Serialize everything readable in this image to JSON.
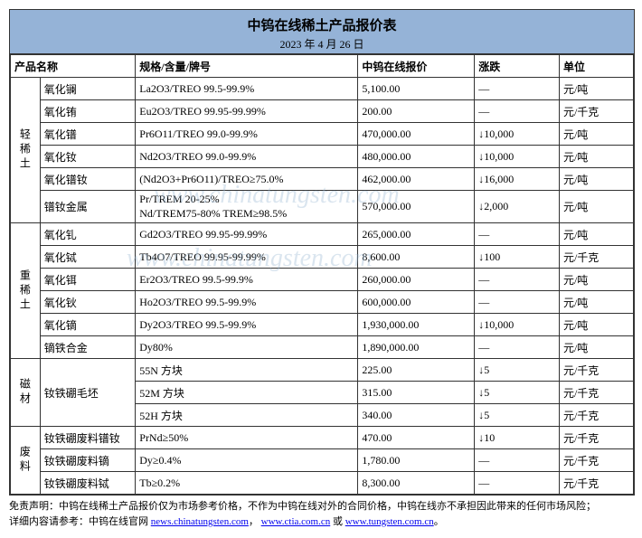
{
  "header": {
    "title": "中钨在线稀土产品报价表",
    "date": "2023 年 4 月 26 日"
  },
  "columns": {
    "name": "产品名称",
    "spec": "规格/含量/牌号",
    "price": "中钨在线报价",
    "change": "涨跌",
    "unit": "单位"
  },
  "groups": [
    {
      "label": "轻稀土",
      "rows": [
        {
          "name": "氧化镧",
          "spec": "La2O3/TREO 99.5-99.9%",
          "price": "5,100.00",
          "change": "—",
          "unit": "元/吨"
        },
        {
          "name": "氧化铕",
          "spec": "Eu2O3/TREO 99.95-99.99%",
          "price": "200.00",
          "change": "—",
          "unit": "元/千克"
        },
        {
          "name": "氧化镨",
          "spec": "Pr6O11/TREO 99.0-99.9%",
          "price": "470,000.00",
          "change": "↓10,000",
          "unit": "元/吨"
        },
        {
          "name": "氧化钕",
          "spec": "Nd2O3/TREO 99.0-99.9%",
          "price": "480,000.00",
          "change": "↓10,000",
          "unit": "元/吨"
        },
        {
          "name": "氧化镨钕",
          "spec": "(Nd2O3+Pr6O11)/TREO≥75.0%",
          "price": "462,000.00",
          "change": "↓16,000",
          "unit": "元/吨"
        },
        {
          "name": "镨钕金属",
          "spec": "Pr/TREM 20-25%\nNd/TREM75-80% TREM≥98.5%",
          "price": "570,000.00",
          "change": "↓2,000",
          "unit": "元/吨",
          "multiline": true
        }
      ]
    },
    {
      "label": "重稀土",
      "rows": [
        {
          "name": "氧化钆",
          "spec": "Gd2O3/TREO 99.95-99.99%",
          "price": "265,000.00",
          "change": "—",
          "unit": "元/吨"
        },
        {
          "name": "氧化铽",
          "spec": "Tb4O7/TREO 99.95-99.99%",
          "price": "8,600.00",
          "change": "↓100",
          "unit": "元/千克"
        },
        {
          "name": "氧化铒",
          "spec": "Er2O3/TREO 99.5-99.9%",
          "price": "260,000.00",
          "change": "—",
          "unit": "元/吨"
        },
        {
          "name": "氧化钬",
          "spec": "Ho2O3/TREO 99.5-99.9%",
          "price": "600,000.00",
          "change": "—",
          "unit": "元/吨"
        },
        {
          "name": "氧化镝",
          "spec": "Dy2O3/TREO 99.5-99.9%",
          "price": "1,930,000.00",
          "change": "↓10,000",
          "unit": "元/吨"
        },
        {
          "name": "镝铁合金",
          "spec": "Dy80%",
          "price": "1,890,000.00",
          "change": "—",
          "unit": "元/吨"
        }
      ]
    },
    {
      "label": "磁材",
      "rows": [
        {
          "name": "钕铁硼毛坯",
          "spec": "55N 方块",
          "price": "225.00",
          "change": "↓5",
          "unit": "元/千克",
          "name_rowspan": 3
        },
        {
          "name": "",
          "spec": "52M 方块",
          "price": "315.00",
          "change": "↓5",
          "unit": "元/千克",
          "skip_name": true
        },
        {
          "name": "",
          "spec": "52H 方块",
          "price": "340.00",
          "change": "↓5",
          "unit": "元/千克",
          "skip_name": true
        }
      ]
    },
    {
      "label": "废料",
      "rows": [
        {
          "name": "钕铁硼废料镨钕",
          "spec": "PrNd≥50%",
          "price": "470.00",
          "change": "↓10",
          "unit": "元/千克"
        },
        {
          "name": "钕铁硼废料镝",
          "spec": "Dy≥0.4%",
          "price": "1,780.00",
          "change": "—",
          "unit": "元/千克"
        },
        {
          "name": "钕铁硼废料铽",
          "spec": "Tb≥0.2%",
          "price": "8,300.00",
          "change": "—",
          "unit": "元/千克"
        }
      ]
    }
  ],
  "disclaimer": {
    "line1_prefix": "免责声明：中钨在线稀土产品报价仅为市场参考价格，不作为中钨在线对外的合同价格，中钨在线亦不承担因此带来的任何市场风险；",
    "line2_prefix": "详细内容请参考：中钨在线官网 ",
    "link1": "news.chinatungsten.com",
    "sep1": "，",
    "link2": "www.ctia.com.cn",
    "sep2": " 或 ",
    "link3": "www.tungsten.com.cn",
    "suffix": "。"
  },
  "watermark": "www.chinatungsten.com"
}
